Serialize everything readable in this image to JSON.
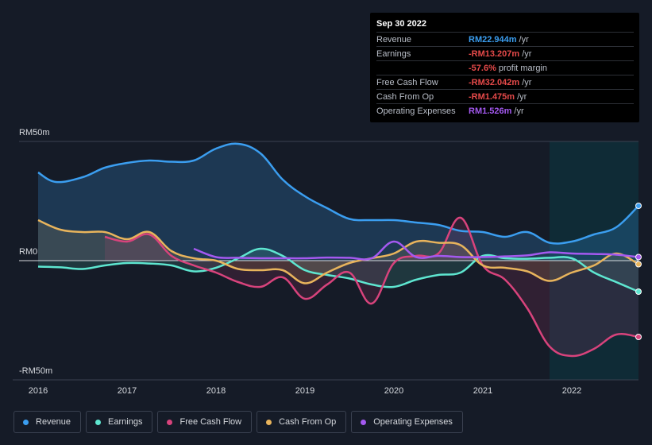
{
  "tooltip": {
    "date": "Sep 30 2022",
    "rows": [
      {
        "label": "Revenue",
        "value": "RM22.944m",
        "unit": "/yr",
        "tone": "rev"
      },
      {
        "label": "Earnings",
        "value": "-RM13.207m",
        "unit": "/yr",
        "tone": "neg"
      },
      {
        "label": "",
        "value": "-57.6%",
        "unit": "profit margin",
        "tone": "neg"
      },
      {
        "label": "Free Cash Flow",
        "value": "-RM32.042m",
        "unit": "/yr",
        "tone": "neg"
      },
      {
        "label": "Cash From Op",
        "value": "-RM1.475m",
        "unit": "/yr",
        "tone": "neg"
      },
      {
        "label": "Operating Expenses",
        "value": "RM1.526m",
        "unit": "/yr",
        "tone": "opex"
      }
    ]
  },
  "legend": [
    {
      "label": "Revenue",
      "color": "#3b9ef0"
    },
    {
      "label": "Earnings",
      "color": "#5ee6d0"
    },
    {
      "label": "Free Cash Flow",
      "color": "#d8437c"
    },
    {
      "label": "Cash From Op",
      "color": "#e8b45c"
    },
    {
      "label": "Operating Expenses",
      "color": "#a459f0"
    }
  ],
  "chart_data": {
    "type": "line",
    "title": "",
    "y_tick_labels": [
      "RM50m",
      "RM0",
      "-RM50m"
    ],
    "ylim": [
      -50,
      50
    ],
    "xlim": [
      2016.0,
      2022.75
    ],
    "x_tick_labels": [
      "2016",
      "2017",
      "2018",
      "2019",
      "2020",
      "2021",
      "2022"
    ],
    "x_ticks": [
      2016,
      2017,
      2018,
      2019,
      2020,
      2021,
      2022
    ],
    "highlight_from": 2021.75,
    "series": [
      {
        "name": "Revenue",
        "color": "#3b9ef0",
        "fill": true,
        "x": [
          2016.0,
          2016.2,
          2016.5,
          2016.75,
          2017.0,
          2017.25,
          2017.5,
          2017.75,
          2018.0,
          2018.25,
          2018.5,
          2018.75,
          2019.0,
          2019.25,
          2019.5,
          2019.75,
          2020.0,
          2020.25,
          2020.5,
          2020.75,
          2021.0,
          2021.25,
          2021.5,
          2021.75,
          2022.0,
          2022.25,
          2022.5,
          2022.75
        ],
        "y": [
          37,
          33,
          35,
          39,
          41,
          42,
          41.5,
          42,
          47,
          49,
          45,
          34,
          27,
          22,
          17.5,
          17,
          17,
          16,
          15,
          12.5,
          12,
          10,
          12,
          7.5,
          8,
          11,
          14,
          23
        ]
      },
      {
        "name": "Earnings",
        "color": "#5ee6d0",
        "fill": true,
        "x": [
          2016.0,
          2016.25,
          2016.5,
          2016.75,
          2017.0,
          2017.25,
          2017.5,
          2017.75,
          2018.0,
          2018.25,
          2018.5,
          2018.75,
          2019.0,
          2019.25,
          2019.5,
          2019.75,
          2020.0,
          2020.25,
          2020.5,
          2020.75,
          2021.0,
          2021.25,
          2021.5,
          2021.75,
          2022.0,
          2022.25,
          2022.5,
          2022.75
        ],
        "y": [
          -2.5,
          -2.8,
          -3.5,
          -2,
          -1,
          -1.2,
          -2,
          -4.5,
          -3,
          1,
          5,
          2,
          -4,
          -6,
          -7.5,
          -10,
          -11,
          -8,
          -6,
          -5,
          2,
          1,
          0.8,
          1.2,
          1,
          -5,
          -9,
          -13
        ]
      },
      {
        "name": "Free Cash Flow",
        "color": "#d8437c",
        "fill": true,
        "x": [
          2016.75,
          2017.0,
          2017.25,
          2017.5,
          2017.75,
          2018.0,
          2018.25,
          2018.5,
          2018.75,
          2019.0,
          2019.25,
          2019.5,
          2019.75,
          2020.0,
          2020.25,
          2020.5,
          2020.75,
          2021.0,
          2021.25,
          2021.5,
          2021.75,
          2022.0,
          2022.25,
          2022.5,
          2022.75
        ],
        "y": [
          10,
          8,
          11,
          2,
          -2,
          -5,
          -9,
          -11,
          -7,
          -16,
          -10,
          -5,
          -18,
          -1,
          2,
          3,
          18,
          -2,
          -8,
          -20,
          -36,
          -40,
          -37,
          -31,
          -32
        ]
      },
      {
        "name": "Cash From Op",
        "color": "#e8b45c",
        "fill": true,
        "x": [
          2016.0,
          2016.25,
          2016.5,
          2016.75,
          2017.0,
          2017.25,
          2017.5,
          2017.75,
          2018.0,
          2018.25,
          2018.5,
          2018.75,
          2019.0,
          2019.25,
          2019.5,
          2019.75,
          2020.0,
          2020.25,
          2020.5,
          2020.75,
          2021.0,
          2021.25,
          2021.5,
          2021.75,
          2022.0,
          2022.25,
          2022.5,
          2022.75
        ],
        "y": [
          17,
          13,
          12,
          12,
          9,
          12,
          4,
          1,
          0,
          -3.5,
          -4,
          -4,
          -9.5,
          -5,
          -1,
          1,
          3,
          8,
          7.5,
          6.5,
          -2,
          -3,
          -4.5,
          -8.5,
          -5,
          -2,
          3,
          -1.5
        ]
      },
      {
        "name": "Operating Expenses",
        "color": "#a459f0",
        "fill": false,
        "x": [
          2017.75,
          2018.0,
          2018.25,
          2018.5,
          2018.75,
          2019.0,
          2019.25,
          2019.5,
          2019.75,
          2020.0,
          2020.25,
          2020.5,
          2020.75,
          2021.0,
          2021.25,
          2021.5,
          2021.75,
          2022.0,
          2022.25,
          2022.5,
          2022.75
        ],
        "y": [
          5,
          1.5,
          1.2,
          1,
          1,
          1,
          1.3,
          1.2,
          1,
          8,
          1.5,
          2,
          1.5,
          1.5,
          1.8,
          2.2,
          3.5,
          3,
          2.8,
          2.5,
          1.5
        ]
      }
    ]
  }
}
